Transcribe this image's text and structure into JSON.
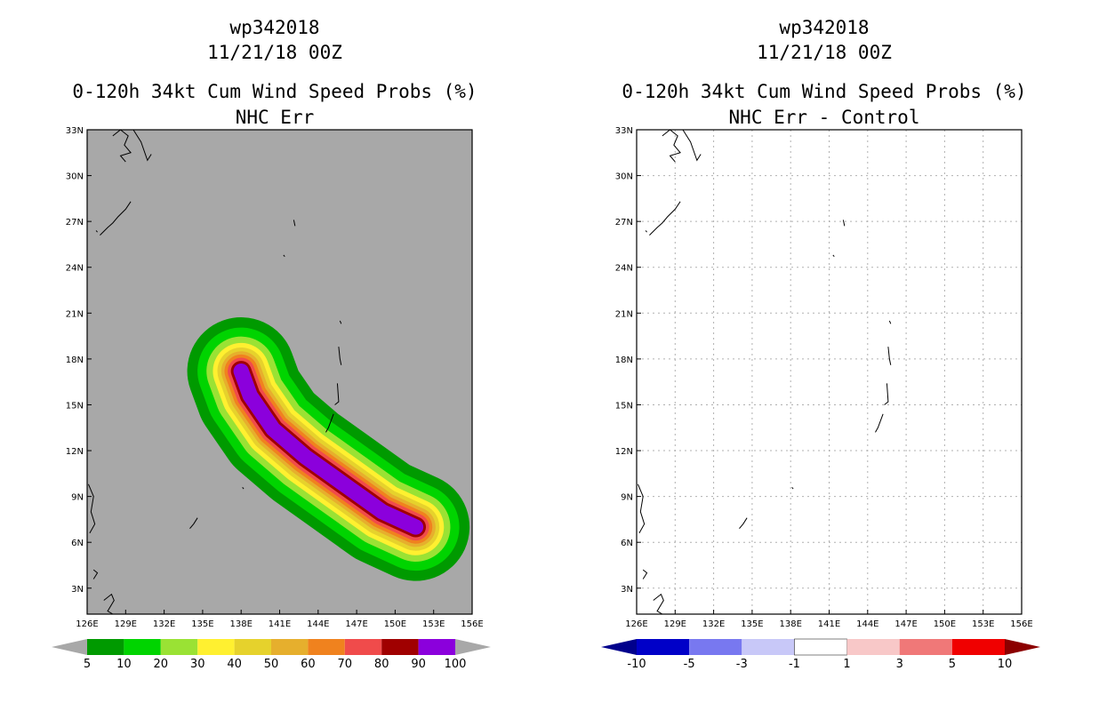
{
  "panels": [
    {
      "id": "left",
      "title_line1": "wp342018",
      "title_line2": "11/21/18 00Z",
      "title_line3": "0-120h 34kt Cum Wind Speed Probs (%)",
      "title_line4": "NHC Err",
      "background_color": "#a8a8a8",
      "grid": false
    },
    {
      "id": "right",
      "title_line1": "wp342018",
      "title_line2": "11/21/18 00Z",
      "title_line3": "0-120h 34kt Cum Wind Speed Probs (%)",
      "title_line4": "NHC Err - Control",
      "background_color": "#ffffff",
      "grid": true
    }
  ],
  "chart_data": [
    {
      "type": "heatmap",
      "title": "0-120h 34kt Cum Wind Speed Probs (%)",
      "subtitle": "NHC Err",
      "storm": "wp342018",
      "init_time": "11/21/18 00Z",
      "x_ticks": [
        "126E",
        "129E",
        "132E",
        "135E",
        "138E",
        "141E",
        "144E",
        "147E",
        "150E",
        "153E",
        "156E"
      ],
      "y_ticks": [
        "3N",
        "6N",
        "9N",
        "12N",
        "15N",
        "18N",
        "21N",
        "24N",
        "27N",
        "30N",
        "33N"
      ],
      "x_range_deg_e": [
        126,
        156
      ],
      "y_range_deg_n": [
        1.3,
        33
      ],
      "colorbar": {
        "labels": [
          "5",
          "10",
          "20",
          "30",
          "40",
          "50",
          "60",
          "70",
          "80",
          "90",
          "100"
        ],
        "colors": [
          "#009a00",
          "#00d400",
          "#9ae234",
          "#fff030",
          "#e6d22c",
          "#e6af2d",
          "#f0821e",
          "#f04b4b",
          "#a00000",
          "#8b00dc"
        ],
        "under_color": "#a8a8a8",
        "over_color": "#a8a8a8"
      },
      "track_deg": [
        [
          151.6,
          7.0
        ],
        [
          149,
          8.0
        ],
        [
          146,
          9.8
        ],
        [
          143,
          11.6
        ],
        [
          140.5,
          13.4
        ],
        [
          138.7,
          15.6
        ],
        [
          138.0,
          17.2
        ]
      ],
      "probability_bands": [
        {
          "min_pct": 5,
          "color": "#009a00",
          "half_width_deg": 4.2
        },
        {
          "min_pct": 10,
          "color": "#00d400",
          "half_width_deg": 3.4
        },
        {
          "min_pct": 20,
          "color": "#9ae234",
          "half_width_deg": 2.7
        },
        {
          "min_pct": 30,
          "color": "#fff030",
          "half_width_deg": 2.2
        },
        {
          "min_pct": 40,
          "color": "#e6d22c",
          "half_width_deg": 1.85
        },
        {
          "min_pct": 50,
          "color": "#e6af2d",
          "half_width_deg": 1.55
        },
        {
          "min_pct": 60,
          "color": "#f0821e",
          "half_width_deg": 1.3
        },
        {
          "min_pct": 70,
          "color": "#f04b4b",
          "half_width_deg": 1.05
        },
        {
          "min_pct": 80,
          "color": "#a00000",
          "half_width_deg": 0.8
        },
        {
          "min_pct": 90,
          "color": "#8b00dc",
          "half_width_deg": 0.6
        }
      ]
    },
    {
      "type": "heatmap",
      "title": "0-120h 34kt Cum Wind Speed Probs (%)",
      "subtitle": "NHC Err - Control",
      "storm": "wp342018",
      "init_time": "11/21/18 00Z",
      "x_ticks": [
        "126E",
        "129E",
        "132E",
        "135E",
        "138E",
        "141E",
        "144E",
        "147E",
        "150E",
        "153E",
        "156E"
      ],
      "y_ticks": [
        "3N",
        "6N",
        "9N",
        "12N",
        "15N",
        "18N",
        "21N",
        "24N",
        "27N",
        "30N",
        "33N"
      ],
      "x_range_deg_e": [
        126,
        156
      ],
      "y_range_deg_n": [
        1.3,
        33
      ],
      "values": "all differences between -1 and 1 (no shading)",
      "colorbar": {
        "labels": [
          "-10",
          "-5",
          "-3",
          "-1",
          "1",
          "3",
          "5",
          "10"
        ],
        "colors": [
          "#0000c8",
          "#7878f0",
          "#c8c8f8",
          "#ffffff",
          "#f8c8c8",
          "#f07878",
          "#f00000"
        ],
        "under_color": "#00008c",
        "over_color": "#8c0000"
      }
    }
  ]
}
